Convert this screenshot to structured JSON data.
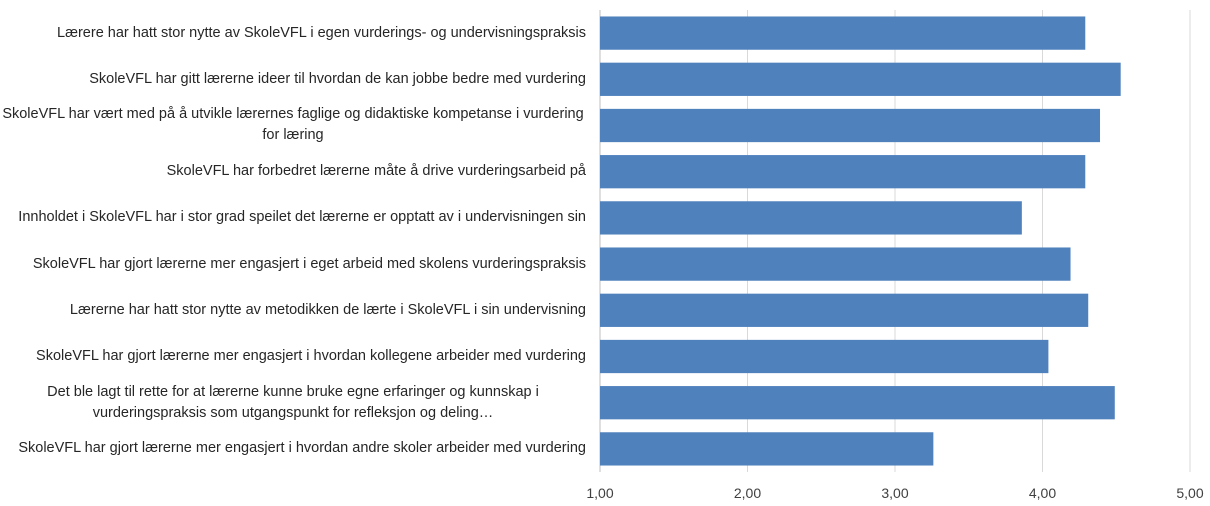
{
  "chart_data": {
    "type": "barh",
    "categories": [
      "Lærere har hatt stor nytte av SkoleVFL i egen vurderings- og undervisningspraksis",
      "SkoleVFL har gitt lærerne ideer til hvordan de kan jobbe bedre med vurdering",
      "SkoleVFL har vært med på å utvikle lærernes faglige og didaktiske kompetanse i vurdering for læring",
      "SkoleVFL har forbedret lærerne måte å drive vurderingsarbeid på",
      "Innholdet i SkoleVFL har i stor grad speilet det lærerne er opptatt av i undervisningen sin",
      "SkoleVFL har gjort lærerne mer engasjert i eget arbeid med skolens vurderingspraksis",
      "Lærerne har hatt stor nytte av metodikken de lærte i SkoleVFL i sin undervisning",
      "SkoleVFL har gjort lærerne mer engasjert i hvordan kollegene arbeider med vurdering",
      "Det ble lagt til rette for at lærerne kunne bruke egne erfaringer og kunnskap i vurderingspraksis som utgangspunkt for refleksjon og deling…",
      "SkoleVFL har gjort lærerne mer engasjert i hvordan andre skoler arbeider med vurdering"
    ],
    "values": [
      4.29,
      4.53,
      4.39,
      4.29,
      3.86,
      4.19,
      4.31,
      4.04,
      4.49,
      3.26
    ],
    "color": "#4f81bd",
    "xlim": [
      1,
      5
    ],
    "xticks": [
      {
        "value": 1,
        "label": "1,00"
      },
      {
        "value": 2,
        "label": "2,00"
      },
      {
        "value": 3,
        "label": "3,00"
      },
      {
        "value": 4,
        "label": "4,00"
      },
      {
        "value": 5,
        "label": "5,00"
      }
    ],
    "grid": true
  }
}
